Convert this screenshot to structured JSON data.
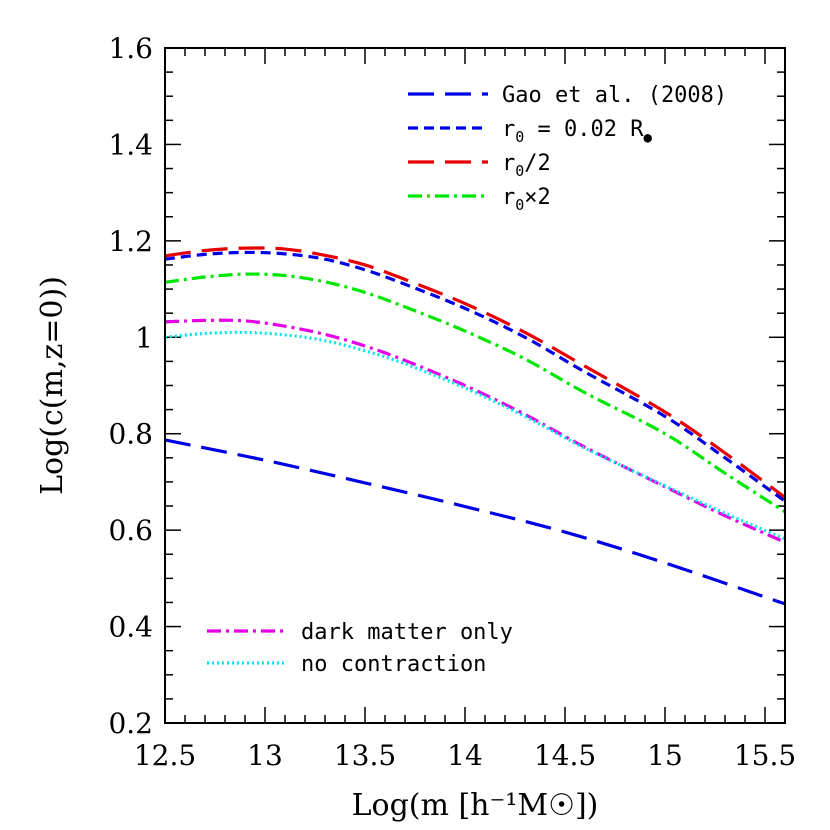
{
  "chart_data": {
    "type": "line",
    "xlabel": "Log(m [h⁻¹M☉])",
    "ylabel": "Log(c(m,z=0))",
    "xlim": [
      12.5,
      15.6
    ],
    "ylim": [
      0.2,
      1.6
    ],
    "xticks": [
      {
        "value": 12.5,
        "label": "12.5"
      },
      {
        "value": 13,
        "label": "13"
      },
      {
        "value": 13.5,
        "label": "13.5"
      },
      {
        "value": 14,
        "label": "14"
      },
      {
        "value": 14.5,
        "label": "14.5"
      },
      {
        "value": 15,
        "label": "15"
      },
      {
        "value": 15.5,
        "label": "15.5"
      }
    ],
    "yticks": [
      {
        "value": 0.2,
        "label": "0.2"
      },
      {
        "value": 0.4,
        "label": "0.4"
      },
      {
        "value": 0.6,
        "label": "0.6"
      },
      {
        "value": 0.8,
        "label": "0.8"
      },
      {
        "value": 1.0,
        "label": "1"
      },
      {
        "value": 1.2,
        "label": "1.2"
      },
      {
        "value": 1.4,
        "label": "1.4"
      },
      {
        "value": 1.6,
        "label": "1.6"
      }
    ],
    "grid": false,
    "legend_top": {
      "placement": "top-right",
      "series": [
        "gao2008",
        "r0",
        "r0half",
        "r0x2"
      ]
    },
    "legend_bottom": {
      "placement": "bottom-left",
      "series": [
        "dmonly",
        "nocontr"
      ]
    },
    "series": [
      {
        "key": "gao2008",
        "name": "Gao et al. (2008)",
        "color": "#0000e6",
        "dash": "long-dash",
        "x": [
          12.5,
          13.0,
          13.5,
          14.0,
          14.5,
          15.0,
          15.6
        ],
        "y": [
          0.787,
          0.745,
          0.698,
          0.649,
          0.596,
          0.532,
          0.447
        ]
      },
      {
        "key": "r0",
        "name_main": "r",
        "name_sub": "0",
        "name_rest": " = 0.02 R",
        "name_marker": "●",
        "color": "#0000e6",
        "dash": "short-dash",
        "x": [
          12.5,
          12.7,
          12.9,
          13.1,
          13.3,
          13.5,
          13.7,
          14.0,
          14.3,
          14.6,
          15.0,
          15.3,
          15.6
        ],
        "y": [
          1.162,
          1.172,
          1.176,
          1.173,
          1.162,
          1.14,
          1.11,
          1.06,
          1.0,
          0.928,
          0.836,
          0.75,
          0.66
        ]
      },
      {
        "key": "r0half",
        "name_main": "r",
        "name_sub": "0",
        "name_rest": "/2",
        "color": "#e60000",
        "dash": "long-dash",
        "x": [
          12.5,
          12.7,
          12.9,
          13.1,
          13.3,
          13.5,
          13.7,
          14.0,
          14.3,
          14.6,
          15.0,
          15.3,
          15.6
        ],
        "y": [
          1.169,
          1.18,
          1.185,
          1.183,
          1.17,
          1.15,
          1.12,
          1.07,
          1.01,
          0.94,
          0.845,
          0.76,
          0.668
        ]
      },
      {
        "key": "r0x2",
        "name_main": "r",
        "name_sub": "0",
        "name_rest": "×2",
        "color": "#00e600",
        "dash": "dash-dot",
        "x": [
          12.5,
          12.7,
          12.9,
          13.1,
          13.3,
          13.5,
          13.7,
          14.0,
          14.3,
          14.6,
          15.0,
          15.3,
          15.6
        ],
        "y": [
          1.114,
          1.125,
          1.131,
          1.128,
          1.115,
          1.093,
          1.063,
          1.013,
          0.955,
          0.885,
          0.8,
          0.718,
          0.638
        ]
      },
      {
        "key": "dmonly",
        "name": "dark matter only",
        "color": "#e600e6",
        "dash": "dash-dot",
        "x": [
          12.5,
          12.7,
          12.9,
          13.1,
          13.3,
          13.5,
          13.7,
          14.0,
          14.3,
          14.6,
          15.0,
          15.3,
          15.6
        ],
        "y": [
          1.032,
          1.035,
          1.034,
          1.023,
          1.006,
          0.982,
          0.952,
          0.9,
          0.84,
          0.772,
          0.69,
          0.63,
          0.575
        ]
      },
      {
        "key": "nocontr",
        "name": "no contraction",
        "color": "#00e6e6",
        "dash": "dotted",
        "x": [
          12.5,
          12.7,
          12.9,
          13.1,
          13.3,
          13.5,
          13.7,
          14.0,
          14.3,
          14.6,
          15.0,
          15.3,
          15.6
        ],
        "y": [
          1.0,
          1.008,
          1.01,
          1.005,
          0.993,
          0.972,
          0.945,
          0.895,
          0.836,
          0.77,
          0.692,
          0.635,
          0.582
        ]
      }
    ]
  }
}
